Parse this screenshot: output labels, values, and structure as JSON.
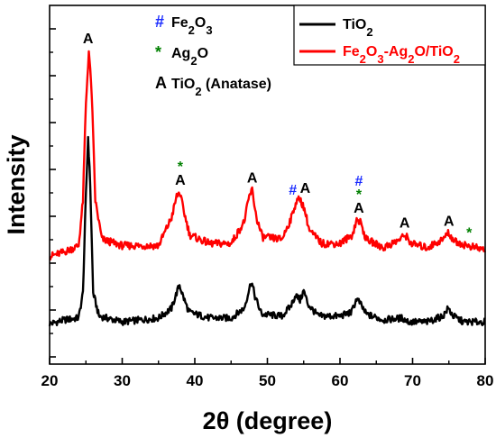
{
  "chart_data": {
    "type": "line",
    "title": "",
    "xlabel": "2θ (degree)",
    "ylabel": "Intensity",
    "xlim": [
      20,
      80
    ],
    "x_ticks": [
      "20",
      "30",
      "40",
      "50",
      "60",
      "70",
      "80"
    ],
    "y_tick_labels": "none",
    "grid": false,
    "legend_position": "top-right",
    "series": [
      {
        "name": "TiO2",
        "color": "#000000",
        "points": [
          [
            20,
            0.04
          ],
          [
            22,
            0.06
          ],
          [
            24,
            0.07
          ],
          [
            24.6,
            0.2
          ],
          [
            25.0,
            0.7
          ],
          [
            25.3,
            1.0
          ],
          [
            25.6,
            0.75
          ],
          [
            26.0,
            0.2
          ],
          [
            26.8,
            0.08
          ],
          [
            30,
            0.05
          ],
          [
            35,
            0.07
          ],
          [
            36.8,
            0.12
          ],
          [
            37.5,
            0.2
          ],
          [
            37.9,
            0.24
          ],
          [
            38.4,
            0.18
          ],
          [
            39.2,
            0.1
          ],
          [
            42,
            0.07
          ],
          [
            45,
            0.07
          ],
          [
            46.8,
            0.12
          ],
          [
            47.5,
            0.22
          ],
          [
            47.8,
            0.26
          ],
          [
            48.3,
            0.18
          ],
          [
            49.2,
            0.09
          ],
          [
            52,
            0.08
          ],
          [
            53.2,
            0.13
          ],
          [
            53.9,
            0.19
          ],
          [
            54.5,
            0.16
          ],
          [
            55.0,
            0.21
          ],
          [
            55.6,
            0.14
          ],
          [
            57,
            0.08
          ],
          [
            60,
            0.08
          ],
          [
            61.6,
            0.1
          ],
          [
            62.3,
            0.17
          ],
          [
            62.7,
            0.15
          ],
          [
            63.6,
            0.09
          ],
          [
            66,
            0.06
          ],
          [
            68.5,
            0.07
          ],
          [
            69.5,
            0.05
          ],
          [
            72,
            0.05
          ],
          [
            74.2,
            0.08
          ],
          [
            74.9,
            0.12
          ],
          [
            75.6,
            0.08
          ],
          [
            77,
            0.05
          ],
          [
            80,
            0.05
          ]
        ]
      },
      {
        "name": "Fe2O3-Ag2O/TiO2",
        "color": "#ff0000",
        "points": [
          [
            20,
            0.04
          ],
          [
            22,
            0.06
          ],
          [
            24,
            0.09
          ],
          [
            24.6,
            0.3
          ],
          [
            25.0,
            0.75
          ],
          [
            25.4,
            1.0
          ],
          [
            25.8,
            0.8
          ],
          [
            26.3,
            0.3
          ],
          [
            27.2,
            0.12
          ],
          [
            30,
            0.09
          ],
          [
            35,
            0.09
          ],
          [
            36.8,
            0.22
          ],
          [
            37.5,
            0.32
          ],
          [
            37.9,
            0.34
          ],
          [
            38.5,
            0.25
          ],
          [
            39.3,
            0.14
          ],
          [
            42,
            0.1
          ],
          [
            45,
            0.1
          ],
          [
            46.8,
            0.2
          ],
          [
            47.5,
            0.32
          ],
          [
            47.9,
            0.35
          ],
          [
            48.5,
            0.22
          ],
          [
            49.3,
            0.13
          ],
          [
            52,
            0.12
          ],
          [
            53.3,
            0.22
          ],
          [
            53.9,
            0.29
          ],
          [
            54.5,
            0.31
          ],
          [
            55.1,
            0.26
          ],
          [
            55.8,
            0.16
          ],
          [
            57.5,
            0.1
          ],
          [
            60,
            0.1
          ],
          [
            61.7,
            0.14
          ],
          [
            62.3,
            0.21
          ],
          [
            62.8,
            0.2
          ],
          [
            63.6,
            0.12
          ],
          [
            66,
            0.08
          ],
          [
            68.3,
            0.12
          ],
          [
            69,
            0.14
          ],
          [
            69.8,
            0.1
          ],
          [
            72,
            0.08
          ],
          [
            74.2,
            0.12
          ],
          [
            74.9,
            0.15
          ],
          [
            75.8,
            0.11
          ],
          [
            77.5,
            0.09
          ],
          [
            80,
            0.07
          ]
        ]
      }
    ],
    "peak_markers": [
      {
        "x": 25.3,
        "series": 1,
        "labels": [
          {
            "text": "A",
            "color": "#000000"
          }
        ]
      },
      {
        "x": 38.0,
        "series": 1,
        "labels": [
          {
            "text": "A",
            "color": "#000000"
          },
          {
            "text": "*",
            "color": "#008000"
          }
        ]
      },
      {
        "x": 47.9,
        "series": 1,
        "labels": [
          {
            "text": "A",
            "color": "#000000"
          }
        ]
      },
      {
        "x": 53.5,
        "series": 1,
        "labels": [
          {
            "text": "#",
            "color": "#1a2bff"
          }
        ]
      },
      {
        "x": 55.2,
        "series": 1,
        "labels": [
          {
            "text": "A",
            "color": "#000000"
          }
        ]
      },
      {
        "x": 62.6,
        "series": 1,
        "labels": [
          {
            "text": "A",
            "color": "#000000"
          },
          {
            "text": "*",
            "color": "#008000"
          },
          {
            "text": "#",
            "color": "#1a2bff"
          }
        ]
      },
      {
        "x": 68.9,
        "series": 1,
        "labels": [
          {
            "text": "A",
            "color": "#000000"
          }
        ]
      },
      {
        "x": 75.0,
        "series": 1,
        "labels": [
          {
            "text": "A",
            "color": "#000000"
          }
        ]
      },
      {
        "x": 77.8,
        "series": 1,
        "labels": [
          {
            "text": "*",
            "color": "#008000"
          }
        ]
      }
    ],
    "phase_key": [
      {
        "symbol": "#",
        "symbol_color": "#1a2bff",
        "label_parts": [
          "Fe",
          "2",
          "O",
          "3"
        ]
      },
      {
        "symbol": "*",
        "symbol_color": "#008000",
        "label_parts": [
          "Ag",
          "2",
          "O"
        ]
      },
      {
        "symbol": "A",
        "symbol_color": "#000000",
        "label_parts": [
          "TiO",
          "2",
          " (Anatase)"
        ]
      }
    ],
    "legend": [
      {
        "label_parts": [
          "TiO",
          "2"
        ],
        "color": "#000000"
      },
      {
        "label_parts": [
          "Fe",
          "2",
          "O",
          "3",
          "-Ag",
          "2",
          "O/TiO",
          "2"
        ],
        "color": "#ff0000"
      }
    ]
  }
}
